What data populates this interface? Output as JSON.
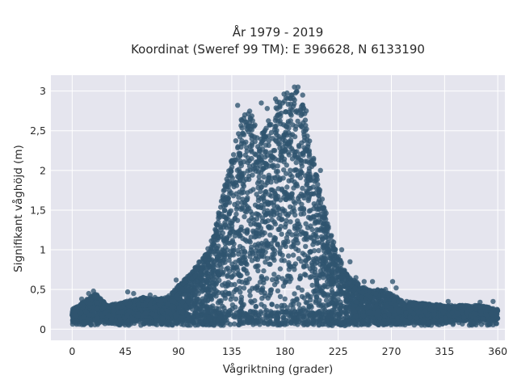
{
  "chart_data": {
    "type": "scatter",
    "title_line1": "År 1979 - 2019",
    "title_line2": "Koordinat (Sweref 99 TM): E 396628, N 6133190",
    "xlabel": "Vågriktning (grader)",
    "ylabel": "Signifikant våghöjd (m)",
    "xlim": [
      -18,
      366
    ],
    "ylim": [
      -0.14,
      3.2
    ],
    "xticks": [
      0,
      45,
      90,
      135,
      180,
      225,
      270,
      315,
      360
    ],
    "xtick_labels": [
      "0",
      "45",
      "90",
      "135",
      "180",
      "225",
      "270",
      "315",
      "360"
    ],
    "yticks": [
      0,
      0.5,
      1,
      1.5,
      2,
      2.5,
      3
    ],
    "ytick_labels": [
      "0",
      "0,5",
      "1",
      "1,5",
      "2",
      "2,5",
      "3"
    ],
    "grid": true,
    "colors": {
      "background": "#e5e5ee",
      "grid": "#ffffff",
      "marker": "#2f5470"
    },
    "envelope": {
      "x": [
        0,
        10,
        20,
        30,
        45,
        60,
        70,
        80,
        90,
        100,
        110,
        120,
        125,
        130,
        135,
        140,
        145,
        150,
        155,
        160,
        165,
        170,
        175,
        180,
        185,
        190,
        195,
        200,
        205,
        210,
        215,
        220,
        225,
        230,
        240,
        250,
        260,
        270,
        280,
        300,
        315,
        330,
        345,
        360
      ],
      "upper": [
        0.25,
        0.35,
        0.45,
        0.3,
        0.35,
        0.4,
        0.38,
        0.4,
        0.55,
        0.7,
        0.9,
        1.2,
        1.55,
        1.9,
        2.2,
        2.55,
        2.7,
        2.8,
        2.6,
        2.45,
        2.6,
        2.8,
        2.9,
        3.0,
        2.95,
        3.0,
        2.85,
        2.5,
        2.1,
        1.75,
        1.45,
        1.15,
        0.95,
        0.75,
        0.6,
        0.5,
        0.5,
        0.45,
        0.35,
        0.32,
        0.3,
        0.3,
        0.3,
        0.25
      ],
      "lower": [
        0.08,
        0.08,
        0.07,
        0.07,
        0.06,
        0.06,
        0.05,
        0.05,
        0.05,
        0.04,
        0.04,
        0.04,
        0.04,
        0.04,
        0.04,
        0.04,
        0.04,
        0.04,
        0.04,
        0.04,
        0.04,
        0.04,
        0.04,
        0.04,
        0.04,
        0.04,
        0.04,
        0.04,
        0.04,
        0.04,
        0.04,
        0.04,
        0.04,
        0.04,
        0.05,
        0.05,
        0.05,
        0.06,
        0.06,
        0.07,
        0.08,
        0.1,
        0.12,
        0.1
      ]
    },
    "outliers": [
      [
        14,
        0.45
      ],
      [
        18,
        0.48
      ],
      [
        8,
        0.38
      ],
      [
        27,
        0.33
      ],
      [
        47,
        0.47
      ],
      [
        52,
        0.45
      ],
      [
        60,
        0.4
      ],
      [
        66,
        0.43
      ],
      [
        70,
        0.4
      ],
      [
        85,
        0.45
      ],
      [
        88,
        0.62
      ],
      [
        95,
        0.6
      ],
      [
        105,
        0.75
      ],
      [
        118,
        0.98
      ],
      [
        140,
        2.82
      ],
      [
        146,
        2.7
      ],
      [
        150,
        2.6
      ],
      [
        152,
        2.4
      ],
      [
        160,
        2.85
      ],
      [
        165,
        2.78
      ],
      [
        172,
        2.9
      ],
      [
        178,
        2.85
      ],
      [
        188,
        3.05
      ],
      [
        191,
        3.05
      ],
      [
        195,
        2.95
      ],
      [
        198,
        2.75
      ],
      [
        210,
        2.0
      ],
      [
        228,
        1.0
      ],
      [
        235,
        0.85
      ],
      [
        240,
        0.65
      ],
      [
        247,
        0.6
      ],
      [
        254,
        0.6
      ],
      [
        265,
        0.5
      ],
      [
        271,
        0.6
      ],
      [
        274,
        0.52
      ],
      [
        283,
        0.35
      ],
      [
        295,
        0.3
      ],
      [
        305,
        0.3
      ],
      [
        318,
        0.35
      ],
      [
        323,
        0.28
      ],
      [
        330,
        0.3
      ],
      [
        337,
        0.25
      ],
      [
        345,
        0.34
      ],
      [
        352,
        0.27
      ],
      [
        356,
        0.35
      ],
      [
        358,
        0.22
      ],
      [
        3,
        0.22
      ],
      [
        10,
        0.15
      ],
      [
        40,
        0.32
      ],
      [
        75,
        0.35
      ]
    ]
  }
}
